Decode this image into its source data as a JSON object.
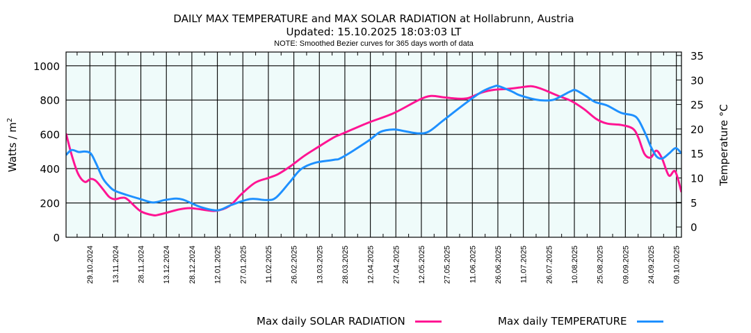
{
  "title": "DAILY MAX TEMPERATURE and MAX SOLAR RADIATION at Hollabrunn, Austria",
  "updated": "Updated: 15.10.2025 18:03:03 LT",
  "note": "NOTE: Smoothed Bezier curves for 365 days worth of data",
  "chart_data": {
    "type": "line",
    "title": "DAILY MAX TEMPERATURE and MAX SOLAR RADIATION at Hollabrunn, Austria",
    "subtitle": "Updated: 15.10.2025 18:03:03 LT",
    "annotation": "NOTE: Smoothed Bezier curves for 365 days worth of data",
    "x_unit": "days since 15.10.2024",
    "xlim": [
      0,
      362
    ],
    "x_ticks": [
      {
        "day": 14,
        "label": "29.10.2024"
      },
      {
        "day": 29,
        "label": "13.11.2024"
      },
      {
        "day": 44,
        "label": "28.11.2024"
      },
      {
        "day": 59,
        "label": "13.12.2024"
      },
      {
        "day": 74,
        "label": "28.12.2024"
      },
      {
        "day": 89,
        "label": "12.01.2025"
      },
      {
        "day": 104,
        "label": "27.01.2025"
      },
      {
        "day": 119,
        "label": "11.02.2025"
      },
      {
        "day": 134,
        "label": "26.02.2025"
      },
      {
        "day": 149,
        "label": "13.03.2025"
      },
      {
        "day": 164,
        "label": "28.03.2025"
      },
      {
        "day": 179,
        "label": "12.04.2025"
      },
      {
        "day": 194,
        "label": "27.04.2025"
      },
      {
        "day": 209,
        "label": "12.05.2025"
      },
      {
        "day": 224,
        "label": "27.05.2025"
      },
      {
        "day": 239,
        "label": "11.06.2025"
      },
      {
        "day": 254,
        "label": "26.06.2025"
      },
      {
        "day": 269,
        "label": "11.07.2025"
      },
      {
        "day": 284,
        "label": "26.07.2025"
      },
      {
        "day": 299,
        "label": "10.08.2025"
      },
      {
        "day": 314,
        "label": "25.08.2025"
      },
      {
        "day": 329,
        "label": "09.09.2025"
      },
      {
        "day": 344,
        "label": "24.09.2025"
      },
      {
        "day": 359,
        "label": "09.10.2025"
      }
    ],
    "y_left": {
      "label": "Watts / m",
      "label_sup": "2",
      "lim": [
        0,
        1080
      ],
      "ticks": [
        0,
        200,
        400,
        600,
        800,
        1000
      ]
    },
    "y_right": {
      "label": "Temperature °C",
      "lim": [
        -2.1,
        35.7
      ],
      "ticks": [
        0,
        5,
        10,
        15,
        20,
        25,
        30,
        35
      ]
    },
    "grid": true,
    "legend_position": "bottom",
    "series": [
      {
        "name": "Max daily SOLAR RADIATION",
        "axis": "left",
        "color": "#ff1493",
        "x": [
          0,
          3.3,
          7,
          11,
          14.5,
          17.6,
          21.7,
          25.4,
          28.6,
          32.7,
          36,
          43.7,
          51.1,
          55.2,
          66.3,
          72.8,
          79.8,
          88,
          96.1,
          103,
          111.2,
          119.4,
          124.7,
          131.7,
          139.9,
          148.1,
          157.5,
          162.4,
          177.5,
          192.6,
          207.4,
          214.7,
          222.1,
          231.1,
          236.8,
          244.6,
          252,
          259.7,
          266.7,
          273.2,
          277.3,
          281.8,
          289.6,
          296.9,
          304.7,
          311.7,
          318.2,
          326.4,
          333.3,
          336.6,
          340.3,
          344,
          347.2,
          350.5,
          354.6,
          358.3,
          362
        ],
        "values": [
          605,
          480,
          372,
          323,
          340,
          328,
          280,
          235,
          222,
          230,
          222,
          153,
          129,
          133,
          162,
          170,
          162,
          154,
          182,
          250,
          318,
          347,
          368,
          412,
          473,
          525,
          582,
          603,
          667,
          723,
          800,
          824,
          816,
          808,
          812,
          844,
          860,
          865,
          873,
          881,
          873,
          857,
          824,
          796,
          747,
          691,
          663,
          655,
          634,
          582,
          485,
          465,
          505,
          461,
          360,
          384,
          263
        ]
      },
      {
        "name": "Max daily TEMPERATURE",
        "axis": "right",
        "color": "#1e90ff",
        "x": [
          0,
          3.3,
          7.4,
          11,
          14.5,
          17.6,
          21.7,
          25.4,
          28.6,
          36,
          43.7,
          51.1,
          58,
          64.4,
          68.5,
          72.8,
          79.8,
          89.2,
          97.3,
          108.4,
          117.8,
          123.5,
          131.7,
          138.2,
          146.4,
          157.5,
          162.4,
          177.5,
          184.9,
          192.6,
          198.4,
          207.4,
          213.5,
          222.1,
          235.2,
          244.6,
          252,
          254.8,
          262.6,
          266.7,
          276.1,
          281.8,
          287.1,
          292.4,
          296.9,
          299.8,
          305.9,
          311.2,
          318.2,
          326.4,
          333.3,
          336.6,
          340.7,
          344.4,
          347.6,
          350.9,
          355,
          358.7,
          362
        ],
        "values": [
          14.7,
          15.7,
          15.3,
          15.4,
          15.0,
          13.0,
          9.9,
          8.3,
          7.4,
          6.5,
          5.7,
          5.0,
          5.5,
          5.8,
          5.6,
          5.0,
          4.0,
          3.4,
          4.5,
          5.7,
          5.5,
          6.0,
          9.2,
          11.8,
          13.1,
          13.7,
          14.2,
          17.5,
          19.4,
          19.9,
          19.6,
          19.1,
          19.5,
          21.8,
          25.3,
          27.6,
          28.7,
          28.7,
          27.6,
          26.9,
          26.0,
          25.8,
          26.0,
          26.9,
          27.7,
          27.9,
          26.7,
          25.5,
          24.8,
          23.3,
          22.8,
          21.9,
          19.1,
          16.1,
          14.3,
          14.0,
          15.1,
          16.1,
          15.0
        ]
      }
    ]
  },
  "legend": {
    "solar_label": "Max daily SOLAR RADIATION",
    "temp_label": "Max daily TEMPERATURE"
  }
}
